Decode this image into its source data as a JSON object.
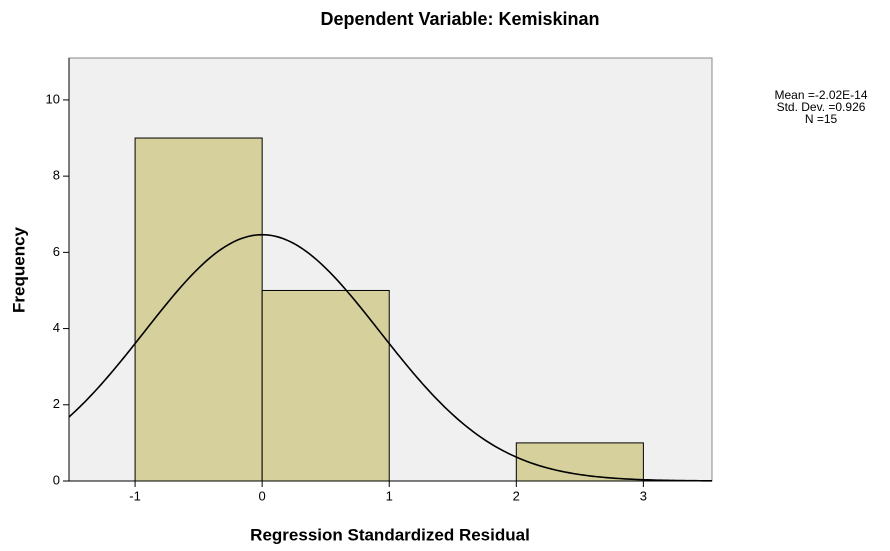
{
  "chart_data": {
    "type": "histogram",
    "title": "Dependent Variable: Kemiskinan",
    "xlabel": "Regression Standardized Residual",
    "ylabel": "Frequency",
    "bins": [
      -1,
      0,
      1,
      2,
      3
    ],
    "counts": [
      9,
      5,
      0,
      1
    ],
    "color": "#d5d09c",
    "xlim": [
      -1.52,
      3.54
    ],
    "ylim": [
      0,
      11.1
    ],
    "xticks": [
      -1,
      0,
      1,
      2,
      3
    ],
    "yticks": [
      0,
      2,
      4,
      6,
      8,
      10
    ],
    "normal_curve": {
      "mean": {
        "value": -2.02e-14,
        "label": "Mean =-2.02E-14"
      },
      "sd": {
        "value": 0.926,
        "label": "Std. Dev. =0.926"
      },
      "n": {
        "value": 15,
        "label": "N =15"
      }
    }
  }
}
